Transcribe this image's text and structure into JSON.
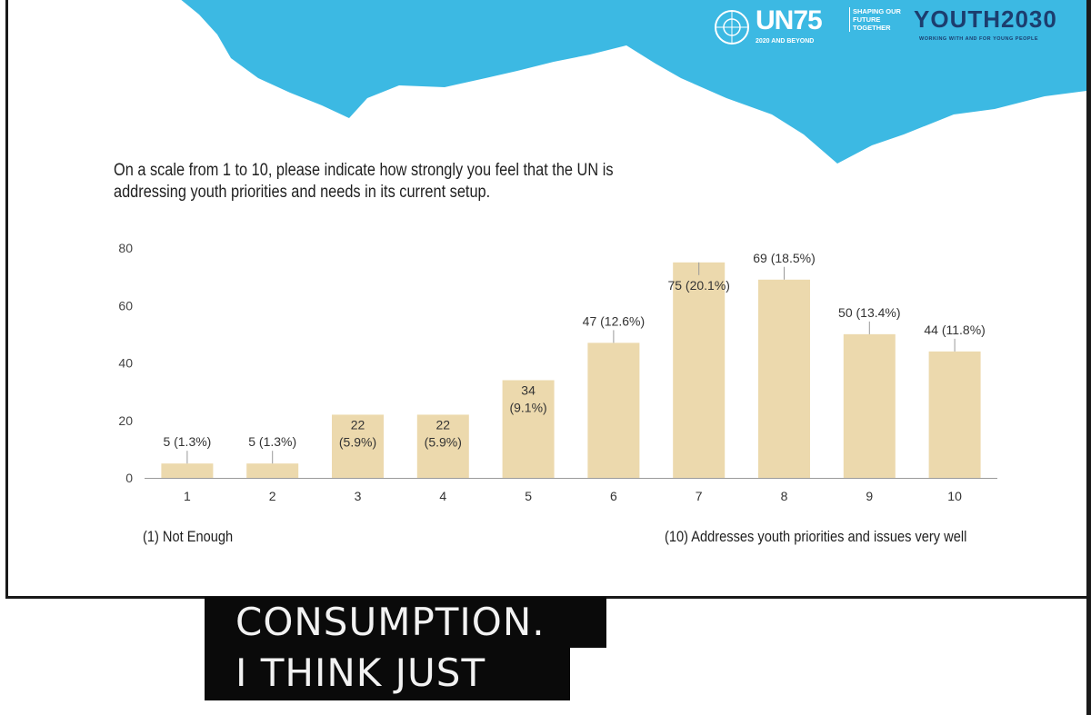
{
  "slide": {
    "question": "On a scale from 1 to 10, please indicate how strongly you feel that the UN is\naddressing youth priorities and needs in its current setup.",
    "left_note": "(1) Not Enough",
    "right_note": "(10) Addresses youth priorities and issues very well"
  },
  "logos": {
    "un_main": "UN75",
    "un_sub": "2020 AND BEYOND",
    "un_tagline": "SHAPING OUR FUTURE TOGETHER",
    "youth_main": "YOUTH2030",
    "youth_sub": "WORKING WITH AND FOR YOUNG PEOPLE"
  },
  "colors": {
    "bar": "#ecd9ad",
    "header_blue": "#3cb9e3",
    "text": "#1f1f1f",
    "caption_bg": "#0a0a0a",
    "youth_navy": "#1c3d6e"
  },
  "chart_data": {
    "type": "bar",
    "categories": [
      "1",
      "2",
      "3",
      "4",
      "5",
      "6",
      "7",
      "8",
      "9",
      "10"
    ],
    "values": [
      5,
      5,
      22,
      22,
      34,
      47,
      75,
      69,
      50,
      44
    ],
    "data_labels": [
      "5 (1.3%)",
      "5 (1.3%)",
      "22\n(5.9%)",
      "22\n(5.9%)",
      "34\n(9.1%)",
      "47 (12.6%)",
      "75 (20.1%)",
      "69 (18.5%)",
      "50 (13.4%)",
      "44 (11.8%)"
    ],
    "y_ticks": [
      "0",
      "20",
      "40",
      "60",
      "80"
    ],
    "ylim": [
      0,
      80
    ],
    "grid": false,
    "legend": "none"
  },
  "caption": {
    "line1": "CONSUMPTION.",
    "line2": "I THINK JUST"
  }
}
